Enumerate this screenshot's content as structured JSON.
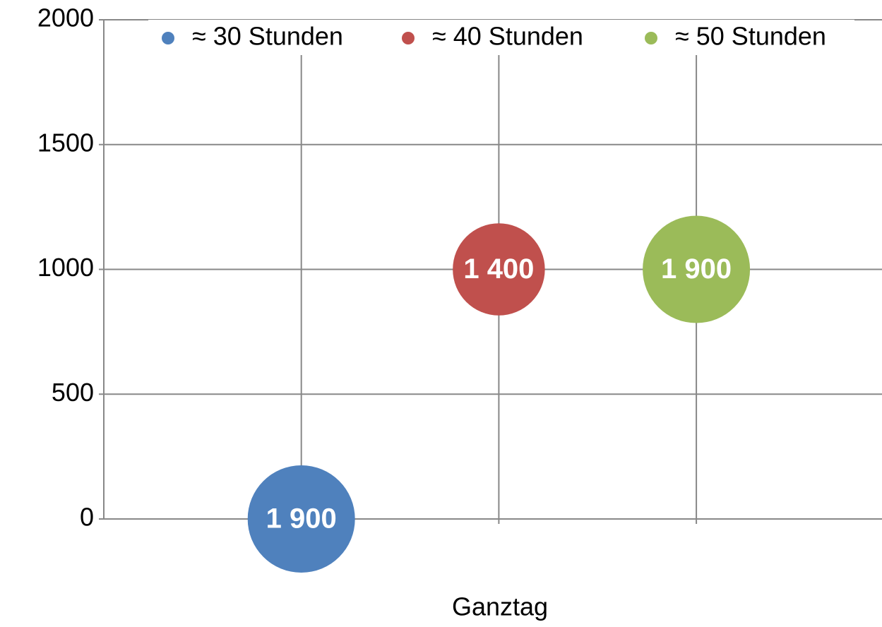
{
  "chart_data": {
    "type": "bubble",
    "x_label": "Ganztag",
    "xlim": [
      0,
      3.94
    ],
    "xticks": [
      1,
      2,
      3
    ],
    "ylim": [
      0,
      2000
    ],
    "yticks": [
      0,
      500,
      1000,
      1500,
      2000
    ],
    "grid": true,
    "legend": "top",
    "series": [
      {
        "name": "≈ 30 Stunden",
        "color": "#4f81bd",
        "x": [
          1
        ],
        "values": [
          0
        ],
        "sizes": [
          1900
        ],
        "size_labels": [
          "1 900"
        ]
      },
      {
        "name": "≈ 40 Stunden",
        "color": "#c0504d",
        "x": [
          2
        ],
        "values": [
          1000
        ],
        "sizes": [
          1400
        ],
        "size_labels": [
          "1 400"
        ]
      },
      {
        "name": "≈ 50 Stunden",
        "color": "#9bbb59",
        "x": [
          3
        ],
        "values": [
          1000
        ],
        "sizes": [
          1900
        ],
        "size_labels": [
          "1 900"
        ]
      }
    ]
  }
}
